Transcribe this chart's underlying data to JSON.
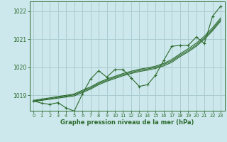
{
  "title": "Graphe pression niveau de la mer (hPa)",
  "background_color": "#cce8ec",
  "grid_color": "#aaccd0",
  "line_color": "#2d6a2d",
  "marker_color": "#2d6a2d",
  "xlim": [
    -0.5,
    23.5
  ],
  "ylim": [
    1018.45,
    1022.35
  ],
  "yticks": [
    1019,
    1020,
    1021,
    1022
  ],
  "xticks": [
    0,
    1,
    2,
    3,
    4,
    5,
    6,
    7,
    8,
    9,
    10,
    11,
    12,
    13,
    14,
    15,
    16,
    17,
    18,
    19,
    20,
    21,
    22,
    23
  ],
  "series_smooth1": {
    "x": [
      0,
      1,
      2,
      3,
      4,
      5,
      6,
      7,
      8,
      9,
      10,
      11,
      12,
      13,
      14,
      15,
      16,
      17,
      18,
      19,
      20,
      21,
      22,
      23
    ],
    "y": [
      1018.78,
      1018.82,
      1018.86,
      1018.9,
      1018.94,
      1018.98,
      1019.1,
      1019.22,
      1019.38,
      1019.5,
      1019.6,
      1019.7,
      1019.78,
      1019.85,
      1019.9,
      1019.96,
      1020.05,
      1020.18,
      1020.38,
      1020.55,
      1020.75,
      1021.0,
      1021.3,
      1021.65
    ]
  },
  "series_smooth2": {
    "x": [
      0,
      1,
      2,
      3,
      4,
      5,
      6,
      7,
      8,
      9,
      10,
      11,
      12,
      13,
      14,
      15,
      16,
      17,
      18,
      19,
      20,
      21,
      22,
      23
    ],
    "y": [
      1018.8,
      1018.84,
      1018.88,
      1018.93,
      1018.97,
      1019.02,
      1019.14,
      1019.26,
      1019.42,
      1019.54,
      1019.64,
      1019.74,
      1019.82,
      1019.89,
      1019.94,
      1020.0,
      1020.1,
      1020.23,
      1020.43,
      1020.6,
      1020.8,
      1021.05,
      1021.35,
      1021.7
    ]
  },
  "series_smooth3": {
    "x": [
      0,
      1,
      2,
      3,
      4,
      5,
      6,
      7,
      8,
      9,
      10,
      11,
      12,
      13,
      14,
      15,
      16,
      17,
      18,
      19,
      20,
      21,
      22,
      23
    ],
    "y": [
      1018.82,
      1018.87,
      1018.91,
      1018.96,
      1019.0,
      1019.05,
      1019.18,
      1019.3,
      1019.46,
      1019.58,
      1019.68,
      1019.78,
      1019.86,
      1019.93,
      1019.98,
      1020.04,
      1020.14,
      1020.28,
      1020.48,
      1020.66,
      1020.86,
      1021.11,
      1021.41,
      1021.76
    ]
  },
  "series_jagged": {
    "x": [
      0,
      1,
      2,
      3,
      4,
      5,
      6,
      7,
      8,
      9,
      10,
      11,
      12,
      13,
      14,
      15,
      16,
      17,
      18,
      19,
      20,
      21,
      22,
      23
    ],
    "y": [
      1018.8,
      1018.72,
      1018.68,
      1018.74,
      1018.55,
      1018.44,
      1019.05,
      1019.58,
      1019.88,
      1019.65,
      1019.92,
      1019.92,
      1019.62,
      1019.32,
      1019.38,
      1019.72,
      1020.25,
      1020.75,
      1020.78,
      1020.78,
      1021.08,
      1020.85,
      1021.82,
      1022.18
    ]
  }
}
